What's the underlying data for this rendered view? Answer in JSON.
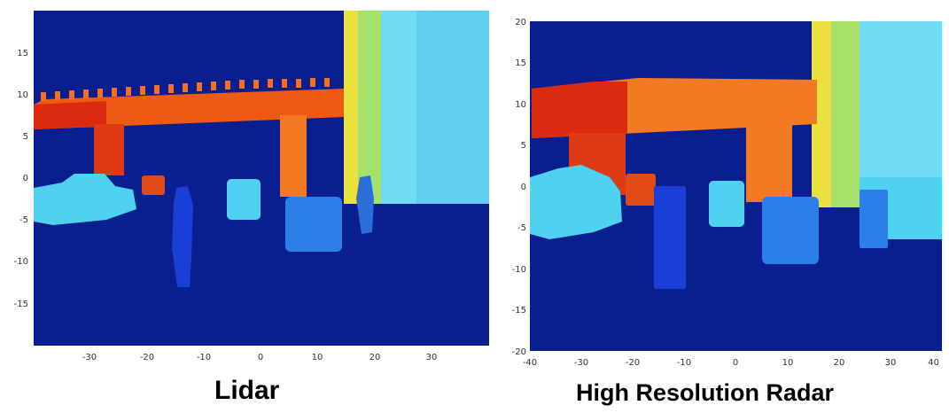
{
  "chart_data": [
    {
      "type": "heatmap",
      "title": "Lidar",
      "xlim": [
        -40,
        40
      ],
      "ylim": [
        -20,
        20
      ],
      "x_ticks": [
        "-30",
        "-20",
        "-10",
        "0",
        "10",
        "20",
        "30"
      ],
      "y_ticks": [
        "15",
        "10",
        "5",
        "0",
        "-5",
        "-10",
        "-15"
      ],
      "colormap": "jet",
      "colors": {
        "background": "#0a1f8f",
        "deep_blue": "#1a3fd6",
        "blue": "#2a7fe8",
        "cyan": "#4fd2f0",
        "light_cyan": "#8ee6f5",
        "green": "#8fe07a",
        "yellow": "#eae040",
        "orange": "#f7761e",
        "dark_orange": "#ee5a12",
        "red": "#dc2a10"
      }
    },
    {
      "type": "heatmap",
      "title": "High Resolution Radar",
      "xlim": [
        -40,
        40
      ],
      "ylim": [
        -20,
        20
      ],
      "x_ticks": [
        "-40",
        "-30",
        "-20",
        "-10",
        "0",
        "10",
        "20",
        "30",
        "40"
      ],
      "y_ticks": [
        "20",
        "15",
        "10",
        "5",
        "0",
        "-5",
        "-10",
        "-15",
        "-20"
      ],
      "colormap": "jet"
    }
  ]
}
